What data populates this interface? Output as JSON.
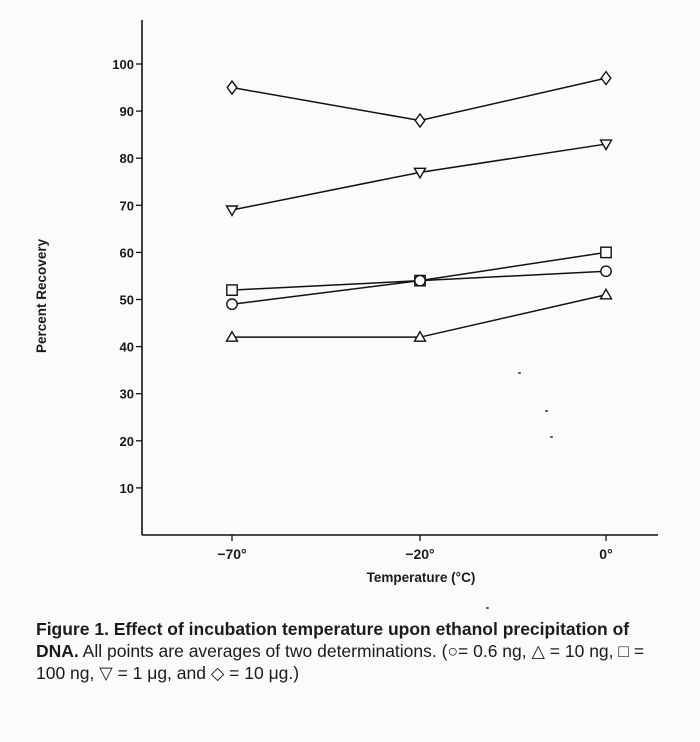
{
  "chart_data": {
    "type": "line",
    "xlabel": "Temperature (°C)",
    "ylabel": "Percent Recovery",
    "categories": [
      "−70°",
      "−20°",
      "0°"
    ],
    "x": [
      -70,
      -20,
      0
    ],
    "yticks": [
      "10",
      "20",
      "30",
      "40",
      "50",
      "60",
      "70",
      "80",
      "90",
      "100"
    ],
    "ylim": [
      0,
      110
    ],
    "grid": false,
    "legend": "none",
    "series": [
      {
        "marker": "diamond",
        "values": [
          95,
          88,
          97
        ]
      },
      {
        "marker": "triangle-down",
        "values": [
          69,
          77,
          83
        ]
      },
      {
        "marker": "square",
        "values": [
          52,
          54,
          60
        ]
      },
      {
        "marker": "circle",
        "values": [
          49,
          54,
          56
        ]
      },
      {
        "marker": "triangle-up",
        "values": [
          42,
          42,
          51
        ]
      }
    ]
  },
  "caption": {
    "title": "Figure 1. Effect of incubation temperature upon ethanol precipitation of DNA.",
    "text": " All points are averages of two determinations. (○= 0.6 ng, △ = 10 ng, □ = 100 ng, ▽ = 1 μg, and ◇ = 10 μg.)"
  }
}
